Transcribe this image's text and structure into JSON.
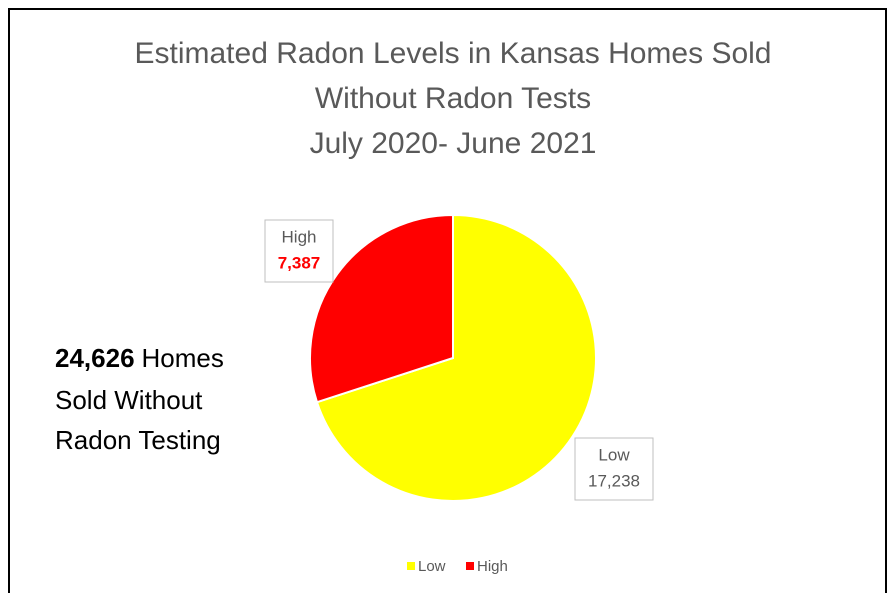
{
  "chart_data": {
    "type": "pie",
    "title": [
      "Estimated Radon Levels in Kansas Homes Sold",
      "Without Radon Tests",
      "July 2020- June 2021"
    ],
    "categories": [
      "Low",
      "High"
    ],
    "values": [
      17238,
      7387
    ],
    "value_labels": [
      "17,238",
      "7,387"
    ],
    "colors": [
      "#ffff00",
      "#ff0000"
    ],
    "legend": "bottom",
    "annotation": {
      "bold": "24,626",
      "lines": [
        "Homes",
        "Sold Without",
        "Radon Testing"
      ]
    }
  }
}
